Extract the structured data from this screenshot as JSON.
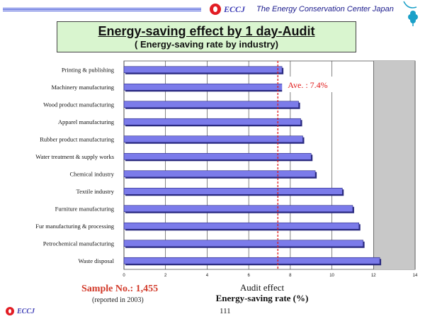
{
  "header": {
    "logo_text": "ECCJ",
    "org_name": "The Energy Conservation Center Japan"
  },
  "title": {
    "main": "Energy-saving effect by 1 day-Audit",
    "sub": "( Energy-saving rate by industry)"
  },
  "colors": {
    "bar_fill": "#7b7bea",
    "bar_dark": "#2a2a80",
    "avg_line": "#e01818",
    "plot_bg": "#ffffff",
    "plot_bg_right": "#c8c8c8"
  },
  "chart_data": {
    "type": "bar",
    "orientation": "horizontal",
    "title": "Energy-saving effect by 1 day-Audit",
    "xlabel": "Audit effect",
    "xlabel2": "Energy-saving rate (%)",
    "xlim": [
      0,
      14
    ],
    "xticks": [
      "0",
      "2",
      "4",
      "6",
      "8",
      "10",
      "12",
      "14"
    ],
    "categories": [
      "Printing & publishing",
      "Machinery manufacturing",
      "Wood product manufacturing",
      "Apparel manufacturing",
      "Rubber product manufacturing",
      "Water treatment & supply works",
      "Chemical industry",
      "Textile industry",
      "Furniture manufacturing",
      "Fur manufacturing & processing",
      "Petrochemical manufacturing",
      "Waste disposal"
    ],
    "values": [
      7.6,
      7.8,
      8.4,
      8.5,
      8.6,
      9.0,
      9.2,
      10.5,
      11.0,
      11.3,
      11.5,
      12.3
    ],
    "average": 7.4,
    "average_label": "Ave. : 7.4%",
    "grid": true
  },
  "footer": {
    "sample": "Sample No.: 1,455",
    "reported": "(reported in 2003)",
    "page": "111",
    "logo_text": "ECCJ"
  }
}
